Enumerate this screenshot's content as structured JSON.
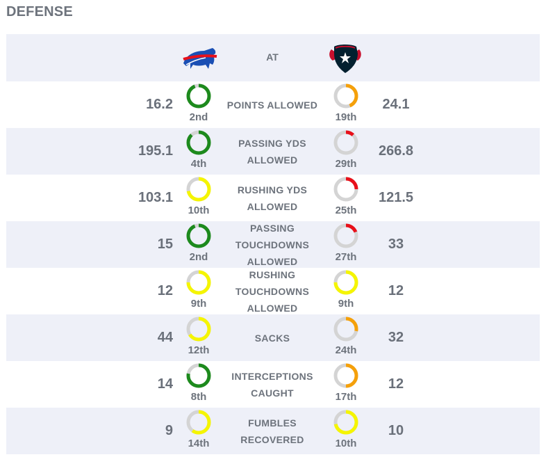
{
  "section_title": "DEFENSE",
  "header": {
    "at_label": "AT",
    "left_logo": "bills-buffalo-logo",
    "right_logo": "texans-bull-logo"
  },
  "colors": {
    "green": "#1d8a1d",
    "yellow": "#f5f500",
    "orange": "#f5a00a",
    "red": "#e8101a",
    "track": "#d4d4d4",
    "row_shade": "#eef0f8"
  },
  "rows": [
    {
      "label": "POINTS ALLOWED",
      "left_value": "16.2",
      "left_rank": "2nd",
      "left_color": "green",
      "left_fill": 0.94,
      "right_value": "24.1",
      "right_rank": "19th",
      "right_color": "orange",
      "right_fill": 0.44
    },
    {
      "label": "PASSING YDS ALLOWED",
      "left_value": "195.1",
      "left_rank": "4th",
      "left_color": "green",
      "left_fill": 0.88,
      "right_value": "266.8",
      "right_rank": "29th",
      "right_color": "red",
      "right_fill": 0.12
    },
    {
      "label": "RUSHING YDS ALLOWED",
      "left_value": "103.1",
      "left_rank": "10th",
      "left_color": "yellow",
      "left_fill": 0.72,
      "right_value": "121.5",
      "right_rank": "25th",
      "right_color": "red",
      "right_fill": 0.25
    },
    {
      "label": "PASSING TOUCHDOWNS ALLOWED",
      "left_value": "15",
      "left_rank": "2nd",
      "left_color": "green",
      "left_fill": 0.94,
      "right_value": "33",
      "right_rank": "27th",
      "right_color": "red",
      "right_fill": 0.19
    },
    {
      "label": "RUSHING TOUCHDOWNS ALLOWED",
      "left_value": "12",
      "left_rank": "9th",
      "left_color": "yellow",
      "left_fill": 0.75,
      "right_value": "12",
      "right_rank": "9th",
      "right_color": "yellow",
      "right_fill": 0.75
    },
    {
      "label": "SACKS",
      "left_value": "44",
      "left_rank": "12th",
      "left_color": "yellow",
      "left_fill": 0.66,
      "right_value": "32",
      "right_rank": "24th",
      "right_color": "orange",
      "right_fill": 0.28
    },
    {
      "label": "INTERCEPTIONS CAUGHT",
      "left_value": "14",
      "left_rank": "8th",
      "left_color": "green",
      "left_fill": 0.78,
      "right_value": "12",
      "right_rank": "17th",
      "right_color": "orange",
      "right_fill": 0.5
    },
    {
      "label": "FUMBLES RECOVERED",
      "left_value": "9",
      "left_rank": "14th",
      "left_color": "yellow",
      "left_fill": 0.6,
      "right_value": "10",
      "right_rank": "10th",
      "right_color": "yellow",
      "right_fill": 0.72
    }
  ]
}
